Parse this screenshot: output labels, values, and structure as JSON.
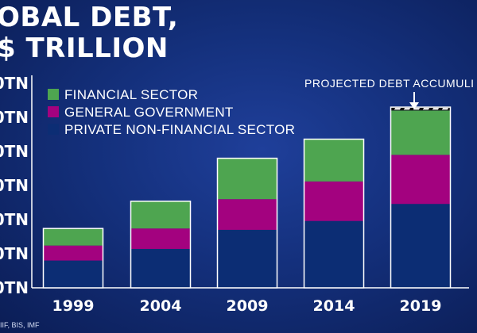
{
  "title": {
    "line1": "OBAL DEBT,",
    "line2": "$ TRILLION"
  },
  "source": "IIF, BIS, IMF",
  "colors": {
    "private": "#0c2d74",
    "government": "#a3027f",
    "financial": "#4ea550",
    "outline": "#ffffff"
  },
  "chart_data": {
    "type": "bar",
    "stacked": true,
    "categories": [
      "1999",
      "2004",
      "2009",
      "2014",
      "2019"
    ],
    "series": [
      {
        "name": "PRIVATE NON-FINANCIAL SECTOR",
        "values": [
          40,
          57,
          85,
          98,
          123
        ]
      },
      {
        "name": "GENERAL GOVERNMENT",
        "values": [
          22,
          30,
          45,
          58,
          72
        ]
      },
      {
        "name": "FINANCIAL SECTOR",
        "values": [
          25,
          40,
          60,
          62,
          65
        ]
      }
    ],
    "projected": {
      "label": "PROJECTED DEBT ACCUMULI",
      "category": "2019",
      "value": 5
    },
    "yticks": [
      "0TN",
      "0TN",
      "0TN",
      "0TN",
      "0TN",
      "0TN",
      "0TN"
    ],
    "ylim": [
      0,
      300
    ],
    "grid": false,
    "legend_position": "top-left"
  }
}
